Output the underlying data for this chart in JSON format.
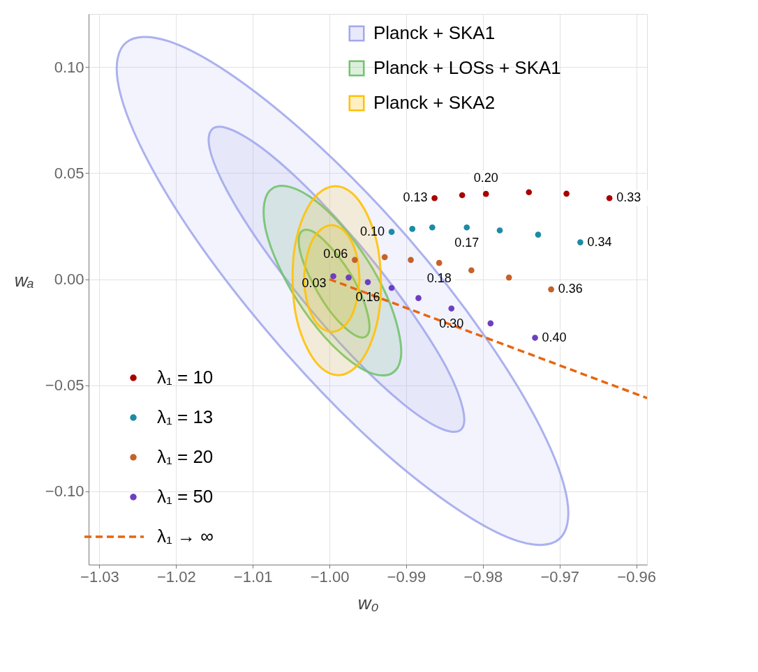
{
  "chart_data": {
    "type": "scatter",
    "xlabel": "w₀",
    "ylabel": "wₐ",
    "xlim": [
      -1.0314,
      -0.9586
    ],
    "ylim": [
      -0.1345,
      0.125
    ],
    "xticks": [
      -1.03,
      -1.02,
      -1.01,
      {
        "value": -1.0,
        "label": "−1.00"
      },
      -0.99,
      -0.98,
      -0.97,
      -0.96
    ],
    "yticks": [
      {
        "value": -0.1,
        "label": "−0.10"
      },
      -0.05,
      {
        "value": 0.0,
        "label": "0.00"
      },
      0.05,
      {
        "value": 0.1,
        "label": "0.10"
      }
    ],
    "grid": true,
    "legend": "top",
    "series": [
      {
        "name": "Planck + SKA1",
        "type": "area",
        "color": "#a3a8ec",
        "x": [
          -0.9701,
          -0.969,
          -0.9724,
          -0.9797,
          -0.9898,
          -1.0013,
          -1.0123,
          -1.0211,
          -1.0265,
          -1.0276,
          -1.0242,
          -1.0169,
          -1.0067,
          -0.9953,
          -0.9843,
          -0.9755
        ],
        "values": [
          -0.1226,
          -0.1041,
          -0.0705,
          -0.0271,
          0.0197,
          0.0626,
          0.0951,
          0.1123,
          0.1116,
          0.0931,
          0.0595,
          0.0162,
          -0.0306,
          -0.0736,
          -0.106,
          -0.1233
        ]
      },
      {
        "type": "area",
        "color": "#a3a8ec",
        "x": [
          -0.9829,
          -0.9826,
          -0.9847,
          -0.9891,
          -0.995,
          -1.0015,
          -1.0076,
          -1.0125,
          -1.0152,
          -1.0156,
          -1.0134,
          -1.009,
          -1.0031,
          -0.9966,
          -0.9905,
          -0.9857
        ],
        "values": [
          -0.071,
          -0.0612,
          -0.042,
          -0.0165,
          0.0116,
          0.0379,
          0.0584,
          0.07,
          0.071,
          0.0612,
          0.042,
          0.0165,
          -0.0116,
          -0.0379,
          -0.0584,
          -0.07
        ]
      },
      {
        "name": "Planck + LOSs + SKA1",
        "type": "area",
        "color": "#72c36e",
        "x": [
          -0.9918,
          -0.9907,
          -0.991,
          -0.9925,
          -0.9951,
          -0.9984,
          -1.0019,
          -1.0051,
          -1.0074,
          -1.0085,
          -1.0083,
          -1.0067,
          -1.0041,
          -1.0008,
          -0.9973,
          -0.9942
        ],
        "values": [
          -0.0442,
          -0.0371,
          -0.0244,
          -0.0081,
          0.0093,
          0.0252,
          0.0372,
          0.0434,
          0.0429,
          0.0358,
          0.0231,
          0.0068,
          -0.0106,
          -0.0265,
          -0.0385,
          -0.0447
        ]
      },
      {
        "type": "area",
        "color": "#72c36e",
        "x": [
          -0.9953,
          -0.9948,
          -0.995,
          -0.9958,
          -0.9972,
          -0.999,
          -1.0008,
          -1.0023,
          -1.0035,
          -1.004,
          -1.0038,
          -1.0029,
          -1.0015,
          -0.9998,
          -0.998,
          -0.9964
        ],
        "values": [
          -0.0271,
          -0.0236,
          -0.0167,
          -0.0077,
          0.0022,
          0.0115,
          0.0186,
          0.0227,
          0.0229,
          0.0194,
          0.0125,
          0.0035,
          -0.0064,
          -0.0157,
          -0.0228,
          -0.0269
        ]
      },
      {
        "name": "Planck + SKA2",
        "type": "area",
        "color": "#ffc107",
        "x": [
          -0.9988,
          -0.9966,
          -0.9948,
          -0.9936,
          -0.9933,
          -0.9938,
          -0.9952,
          -0.9971,
          -0.9993,
          -1.0015,
          -1.0033,
          -1.0045,
          -1.0048,
          -1.0043,
          -1.0029,
          -1.001
        ],
        "values": [
          -0.0452,
          -0.0415,
          -0.0317,
          -0.0171,
          0.0,
          0.017,
          0.0313,
          0.0407,
          0.0439,
          0.0402,
          0.0304,
          0.0158,
          -0.0013,
          -0.0183,
          -0.0326,
          -0.042
        ]
      },
      {
        "type": "area",
        "color": "#ffc107",
        "x": [
          -0.9996,
          -0.9983,
          -0.9971,
          -0.9964,
          -0.9961,
          -0.9964,
          -0.9972,
          -0.9984,
          -0.9998,
          -1.0011,
          -1.0023,
          -1.003,
          -1.0033,
          -1.003,
          -1.0022,
          -1.001
        ],
        "values": [
          -0.0248,
          -0.0228,
          -0.0172,
          -0.009,
          0.0006,
          0.0103,
          0.0183,
          0.0237,
          0.0255,
          0.0235,
          0.0179,
          0.0097,
          0.0,
          -0.0096,
          -0.0177,
          -0.0231
        ]
      },
      {
        "name": "λ₁ → ∞",
        "type": "line",
        "line_style": "dashed",
        "color": "#e8650f",
        "x": [
          -1.0,
          -0.9586
        ],
        "values": [
          0.0,
          -0.056
        ]
      },
      {
        "name": "λ₁ = 10",
        "marker": "circle",
        "color": "#a80000",
        "x": [
          -0.9863,
          -0.9827,
          -0.9796,
          -0.974,
          -0.9691,
          -0.9635
        ],
        "values": [
          0.0382,
          0.0396,
          0.0402,
          0.041,
          0.0403,
          0.0382
        ]
      },
      {
        "name": "λ₁ = 13",
        "marker": "circle",
        "color": "#1b8ba6",
        "x": [
          -0.9919,
          -0.9892,
          -0.9866,
          -0.9821,
          -0.9778,
          -0.9728,
          -0.9673
        ],
        "values": [
          0.0223,
          0.0237,
          0.0244,
          0.0244,
          0.023,
          0.021,
          0.0174
        ]
      },
      {
        "name": "λ₁ = 20",
        "marker": "circle",
        "color": "#c4622c",
        "x": [
          -0.9967,
          -0.9928,
          -0.9894,
          -0.9857,
          -0.9815,
          -0.9766,
          -0.9711
        ],
        "values": [
          0.0091,
          0.0104,
          0.0091,
          0.0077,
          0.0042,
          0.0008,
          -0.0048
        ]
      },
      {
        "name": "λ₁ = 50",
        "marker": "circle",
        "color": "#6d3fc0",
        "x": [
          -0.9995,
          -0.9975,
          -0.995,
          -0.9919,
          -0.9884,
          -0.9841,
          -0.979,
          -0.9732
        ],
        "values": [
          0.0014,
          0.0008,
          -0.0014,
          -0.0041,
          -0.0089,
          -0.0138,
          -0.0208,
          -0.0276
        ]
      }
    ],
    "annotations": [
      {
        "text": "0.13",
        "x": -0.9863,
        "y": 0.0382
      },
      {
        "text": "0.20",
        "x": -0.9796,
        "y": 0.0402
      },
      {
        "text": "0.33",
        "x": -0.9635,
        "y": 0.0382
      },
      {
        "text": "0.10",
        "x": -0.9919,
        "y": 0.0223
      },
      {
        "text": "0.17",
        "x": -0.9821,
        "y": 0.0244
      },
      {
        "text": "0.34",
        "x": -0.9673,
        "y": 0.0174
      },
      {
        "text": "0.06",
        "x": -0.9967,
        "y": 0.0091
      },
      {
        "text": "0.18",
        "x": -0.9857,
        "y": 0.0077
      },
      {
        "text": "0.36",
        "x": -0.9711,
        "y": -0.0048
      },
      {
        "text": "0.03",
        "x": -0.9995,
        "y": 0.0014
      },
      {
        "text": "0.16",
        "x": -0.995,
        "y": -0.0014
      },
      {
        "text": "0.30",
        "x": -0.9841,
        "y": -0.0138
      },
      {
        "text": "0.40",
        "x": -0.9732,
        "y": -0.0276
      }
    ]
  }
}
